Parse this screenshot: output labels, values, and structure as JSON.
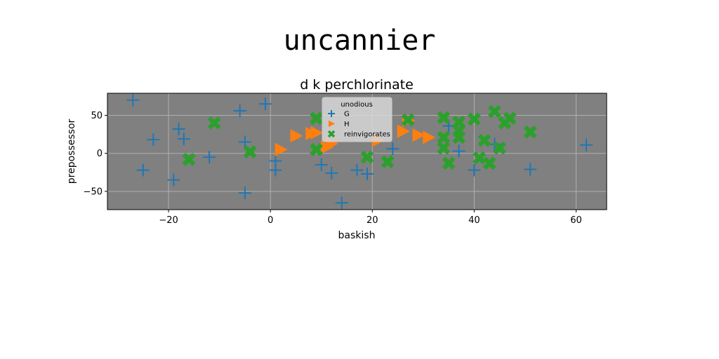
{
  "page": {
    "title": "uncannier"
  },
  "chart_data": {
    "type": "scatter",
    "title": "d k perchlorinate",
    "xlabel": "baskish",
    "ylabel": "prepossessor",
    "xlim": [
      -32,
      66
    ],
    "ylim": [
      -74,
      79
    ],
    "xticks": [
      -20,
      0,
      20,
      40,
      60
    ],
    "yticks": [
      -50,
      0,
      50
    ],
    "grid": true,
    "background": "#808080",
    "legend": {
      "title": "unodious",
      "position": "top-center"
    },
    "series": [
      {
        "name": "G",
        "marker": "plus",
        "color": "#1f77b4",
        "points": [
          [
            -27,
            70
          ],
          [
            -18,
            32
          ],
          [
            -17,
            19
          ],
          [
            -23,
            18
          ],
          [
            -25,
            -22
          ],
          [
            -19,
            -35
          ],
          [
            -12,
            -5
          ],
          [
            -6,
            56
          ],
          [
            -5,
            15
          ],
          [
            -5,
            -52
          ],
          [
            -1,
            65
          ],
          [
            1,
            -10
          ],
          [
            1,
            -22
          ],
          [
            10,
            -15
          ],
          [
            12,
            -26
          ],
          [
            14,
            -65
          ],
          [
            17,
            -22
          ],
          [
            19,
            -27
          ],
          [
            24,
            6
          ],
          [
            35,
            36
          ],
          [
            37,
            3
          ],
          [
            40,
            -22
          ],
          [
            44,
            12
          ],
          [
            51,
            -21
          ],
          [
            62,
            11
          ]
        ]
      },
      {
        "name": "H",
        "marker": "triangle-right",
        "color": "#ff7f0e",
        "points": [
          [
            2,
            5
          ],
          [
            5,
            23
          ],
          [
            8,
            26
          ],
          [
            9,
            27
          ],
          [
            11,
            8
          ],
          [
            12,
            13
          ],
          [
            21,
            17
          ],
          [
            26,
            29
          ],
          [
            27,
            43
          ],
          [
            29,
            24
          ],
          [
            31,
            21
          ]
        ]
      },
      {
        "name": "reinvigorates",
        "marker": "x-thick",
        "color": "#2ca02c",
        "points": [
          [
            -16,
            -8
          ],
          [
            -11,
            40
          ],
          [
            -4,
            2
          ],
          [
            9,
            46
          ],
          [
            9,
            5
          ],
          [
            19,
            -5
          ],
          [
            23,
            -11
          ],
          [
            27,
            44
          ],
          [
            34,
            47
          ],
          [
            34,
            21
          ],
          [
            34,
            7
          ],
          [
            35,
            -13
          ],
          [
            37,
            41
          ],
          [
            37,
            30
          ],
          [
            37,
            21
          ],
          [
            40,
            45
          ],
          [
            41,
            -6
          ],
          [
            42,
            17
          ],
          [
            43,
            -13
          ],
          [
            44,
            55
          ],
          [
            45,
            7
          ],
          [
            46,
            40
          ],
          [
            47,
            46
          ],
          [
            51,
            28
          ]
        ]
      }
    ]
  }
}
